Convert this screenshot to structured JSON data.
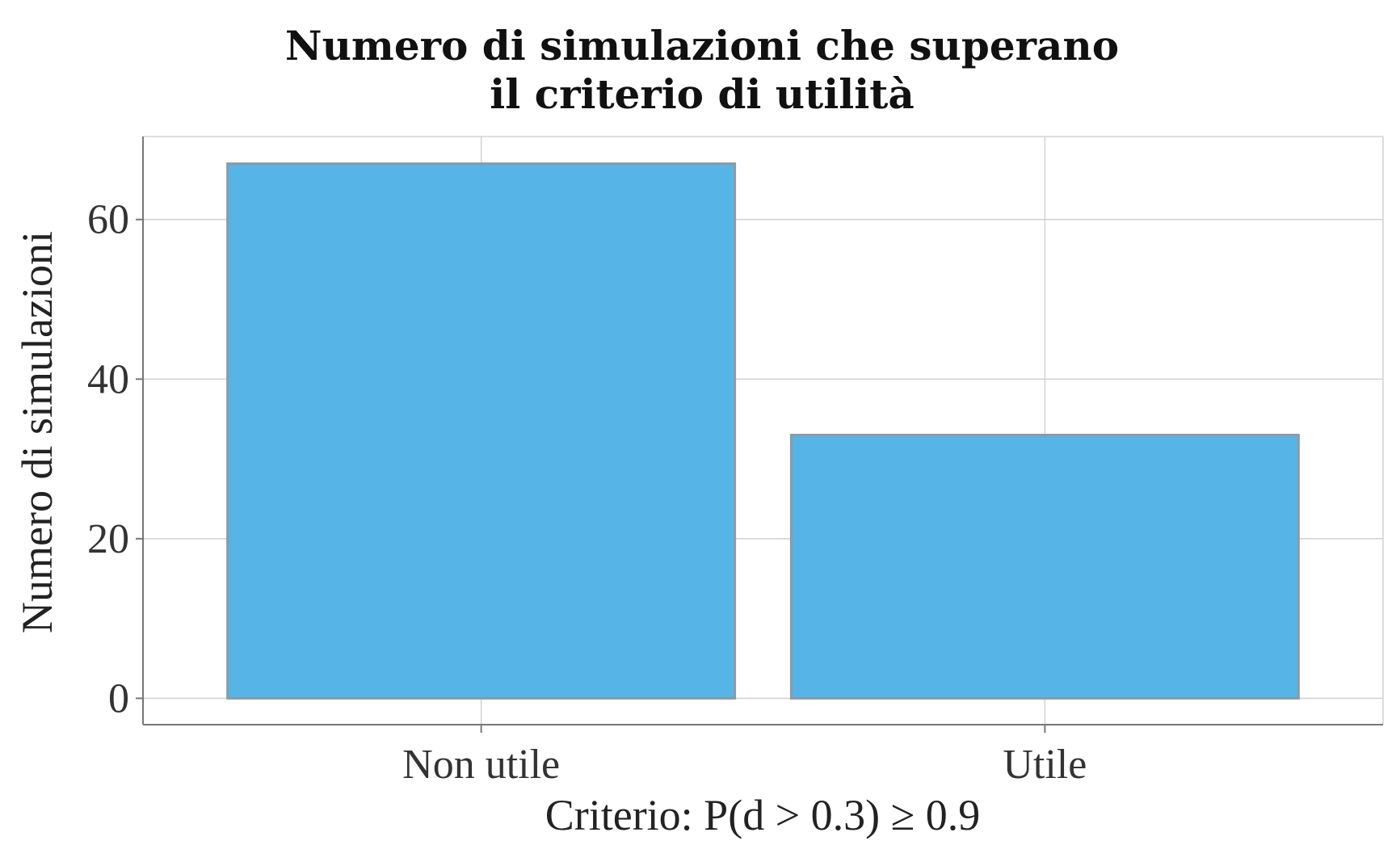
{
  "chart_data": {
    "type": "bar",
    "title": "Numero di simulazioni che superano il criterio di utilità",
    "title_lines": [
      "Numero di simulazioni che superano",
      "il criterio di utilità"
    ],
    "categories": [
      "Non utile",
      "Utile"
    ],
    "values": [
      67,
      33
    ],
    "xlabel": "Criterio: P(d > 0.3) ≥ 0.9",
    "ylabel": "Numero di simulazioni",
    "ylim": [
      -3.3,
      70.4
    ],
    "yticks": [
      0,
      20,
      40,
      60
    ],
    "grid": true,
    "legend": "none",
    "bar_color": "#56B4E6"
  }
}
